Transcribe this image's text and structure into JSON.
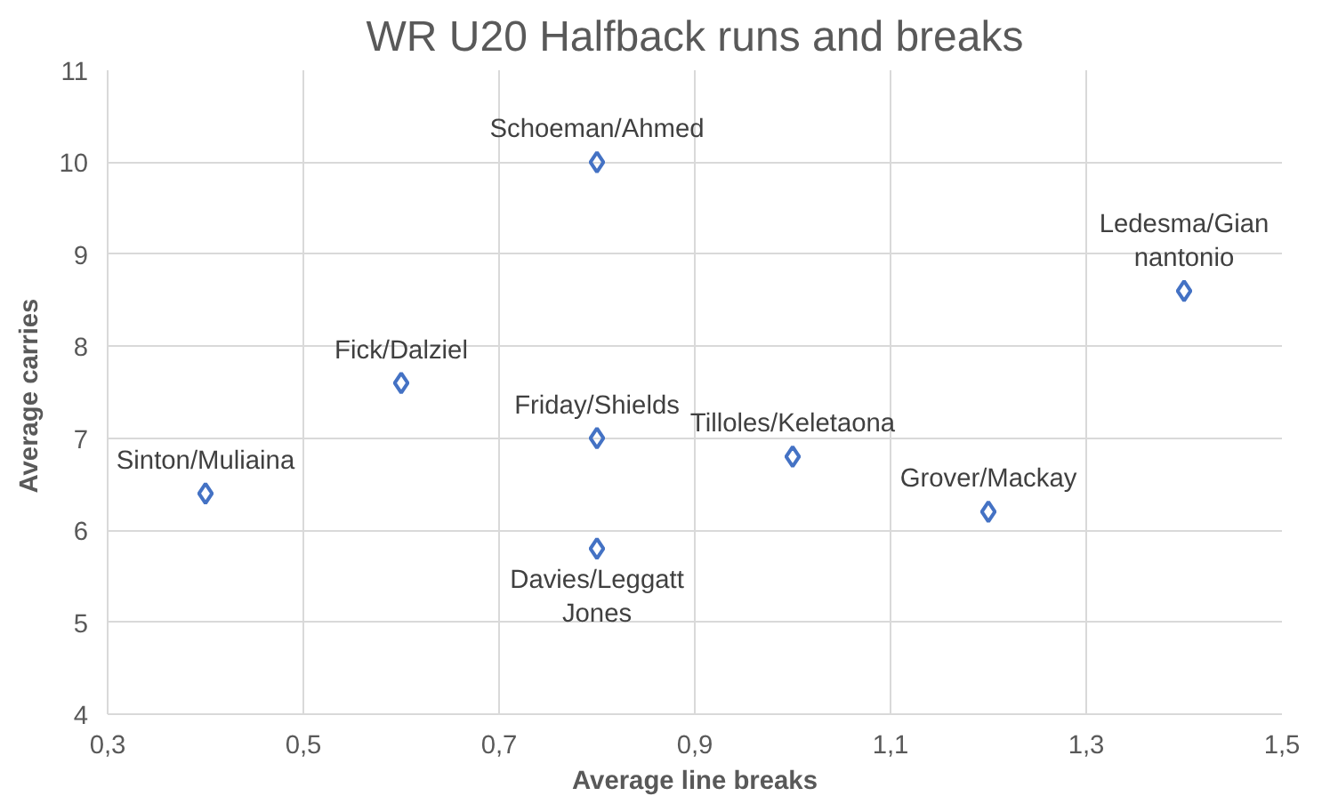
{
  "chart_data": {
    "type": "scatter",
    "title": "WR U20 Halfback runs and breaks",
    "xlabel": "Average line breaks",
    "ylabel": "Average  carries",
    "x": [
      0.4,
      0.6,
      0.8,
      0.8,
      0.8,
      1.0,
      1.2,
      1.4
    ],
    "series": [
      {
        "color": "#4472c4",
        "values": [
          6.4,
          7.6,
          10,
          7.0,
          5.8,
          6.8,
          6.2,
          8.6
        ]
      }
    ],
    "annotations": [
      {
        "text": "Sinton/Muliaina",
        "x": 0.4,
        "y": 6.4
      },
      {
        "text": "Fick/Dalziel",
        "x": 0.6,
        "y": 7.6
      },
      {
        "text": "Schoeman/Ahmed",
        "x": 0.8,
        "y": 10
      },
      {
        "text": "Friday/Shields",
        "x": 0.8,
        "y": 7.0
      },
      {
        "text": "Davies/Leggatt\nJones",
        "x": 0.8,
        "y": 5.8
      },
      {
        "text": "Tilloles/Keletaona",
        "x": 1.0,
        "y": 6.8
      },
      {
        "text": "Grover/Mackay",
        "x": 1.2,
        "y": 6.2
      },
      {
        "text": "Ledesma/Gian\nnantonio",
        "x": 1.4,
        "y": 8.6
      }
    ],
    "xlim": [
      0.3,
      1.5
    ],
    "ylim": [
      4,
      11
    ],
    "xticks": [
      {
        "value": 0.3,
        "label": "0,3"
      },
      {
        "value": 0.5,
        "label": "0,5"
      },
      {
        "value": 0.7,
        "label": "0,7"
      },
      {
        "value": 0.9,
        "label": "0,9"
      },
      {
        "value": 1.1,
        "label": "1,1"
      },
      {
        "value": 1.3,
        "label": "1,3"
      },
      {
        "value": 1.5,
        "label": "1,5"
      }
    ],
    "yticks": [
      4,
      5,
      6,
      7,
      8,
      9,
      10,
      11
    ],
    "grid": true,
    "marker": "diamond"
  }
}
